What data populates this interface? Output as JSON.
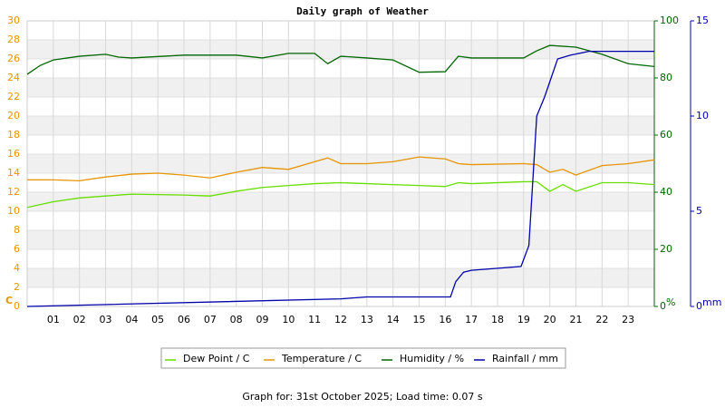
{
  "chart_data": {
    "type": "line",
    "title": "Daily graph of Weather",
    "footer": "Graph for: 31st October 2025; Load time: 0.07 s",
    "ylabel": "C",
    "y2label": "%",
    "y3label": "mm",
    "xlim": [
      0,
      24
    ],
    "xticks": [
      {
        "value": 1,
        "label": "01"
      },
      {
        "value": 2,
        "label": "02"
      },
      {
        "value": 3,
        "label": "03"
      },
      {
        "value": 4,
        "label": "04"
      },
      {
        "value": 5,
        "label": "05"
      },
      {
        "value": 6,
        "label": "06"
      },
      {
        "value": 7,
        "label": "07"
      },
      {
        "value": 8,
        "label": "08"
      },
      {
        "value": 9,
        "label": "09"
      },
      10,
      11,
      12,
      13,
      14,
      15,
      16,
      17,
      18,
      19,
      20,
      21,
      22,
      23
    ],
    "ylim": [
      0,
      30
    ],
    "yticks": [
      0,
      2,
      4,
      6,
      8,
      10,
      12,
      14,
      16,
      18,
      20,
      22,
      24,
      26,
      28,
      30
    ],
    "ycolor": "#e69500",
    "y2lim": [
      0,
      100
    ],
    "y2ticks": [
      0,
      20,
      40,
      60,
      80,
      100
    ],
    "y2color": "#006600",
    "y3lim": [
      0,
      15
    ],
    "y3ticks": [
      0,
      5,
      10,
      15
    ],
    "y3color": "#0000aa",
    "grid": true,
    "series": [
      {
        "name": "Dew Point / C",
        "color": "#66dd00",
        "axis": "y",
        "x": [
          0,
          1,
          2,
          3,
          4,
          6,
          7,
          8,
          9,
          10,
          11,
          12,
          13,
          14,
          15,
          16,
          16.5,
          17,
          19,
          19.5,
          20,
          20.5,
          21,
          22,
          23,
          24
        ],
        "values": [
          10.4,
          11.0,
          11.4,
          11.6,
          11.8,
          11.7,
          11.6,
          12.1,
          12.5,
          12.7,
          12.9,
          13.0,
          12.9,
          12.8,
          12.7,
          12.6,
          13.0,
          12.9,
          13.1,
          13.1,
          12.1,
          12.8,
          12.1,
          13.0,
          13.0,
          12.8
        ]
      },
      {
        "name": "Temperature / C",
        "color": "#e69500",
        "axis": "y",
        "x": [
          0,
          1,
          2,
          3,
          4,
          5,
          6,
          7,
          8,
          9,
          10,
          11,
          11.5,
          12,
          13,
          14,
          15,
          16,
          16.5,
          17,
          19,
          19.5,
          20,
          20.5,
          21,
          22,
          23,
          24
        ],
        "values": [
          13.3,
          13.3,
          13.2,
          13.6,
          13.9,
          14.0,
          13.8,
          13.5,
          14.1,
          14.6,
          14.4,
          15.2,
          15.6,
          15.0,
          15.0,
          15.2,
          15.7,
          15.5,
          15.0,
          14.9,
          15.0,
          14.9,
          14.1,
          14.4,
          13.8,
          14.8,
          15.0,
          15.4
        ]
      },
      {
        "name": "Humidity / %",
        "color": "#006600",
        "axis": "y2",
        "x": [
          0,
          0.5,
          1,
          2,
          3,
          3.5,
          4,
          6,
          8,
          9,
          10,
          11,
          11.5,
          12,
          13,
          14,
          15,
          16,
          16.5,
          17,
          19,
          19.5,
          20,
          21,
          22,
          23,
          24
        ],
        "values": [
          81.3,
          84.4,
          86.3,
          87.6,
          88.3,
          87.3,
          87,
          88,
          88,
          87,
          88.6,
          88.6,
          85,
          87.6,
          87,
          86.3,
          82,
          82.2,
          87.6,
          87,
          87,
          89.5,
          91.4,
          90.8,
          88.3,
          85,
          84
        ]
      },
      {
        "name": "Rainfall / mm",
        "color": "#0000aa",
        "axis": "y3",
        "x": [
          0,
          12,
          13,
          16.2,
          16.4,
          16.7,
          17,
          18.9,
          19.2,
          19.5,
          19.8,
          20.3,
          20.8,
          21.5,
          24
        ],
        "values": [
          0,
          0.4,
          0.5,
          0.5,
          1.3,
          1.8,
          1.9,
          2.1,
          3.2,
          10,
          11,
          13,
          13.2,
          13.4,
          13.4
        ]
      }
    ]
  }
}
